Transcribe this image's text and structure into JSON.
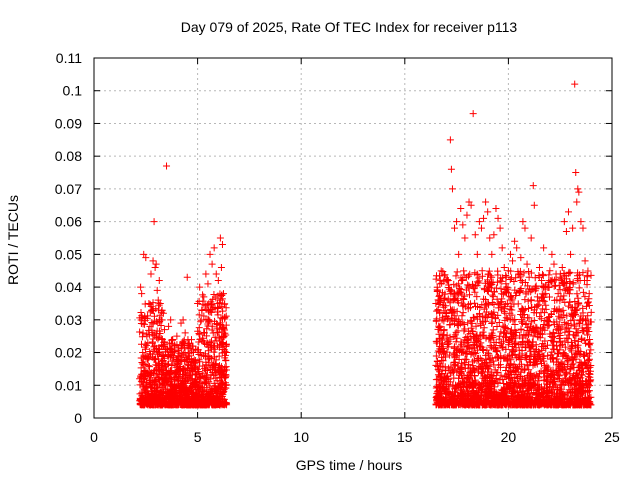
{
  "chart_data": {
    "type": "scatter",
    "title": "Day 079 of 2025, Rate Of TEC Index for receiver p113",
    "xlabel": "GPS time / hours",
    "ylabel": "ROTI / TECUs",
    "xlim": [
      0,
      25
    ],
    "ylim": [
      0,
      0.11
    ],
    "x_ticks": [
      0,
      5,
      10,
      15,
      20,
      25
    ],
    "x_tick_labels": [
      "0",
      "5",
      "10",
      "15",
      "20",
      "25"
    ],
    "y_ticks": [
      0,
      0.01,
      0.02,
      0.03,
      0.04,
      0.05,
      0.06,
      0.07,
      0.08,
      0.09,
      0.1,
      0.11
    ],
    "y_tick_labels": [
      "0",
      "0.01",
      "0.02",
      "0.03",
      "0.04",
      "0.05",
      "0.06",
      "0.07",
      "0.08",
      "0.09",
      "0.1",
      "0.11"
    ],
    "grid": true,
    "marker": "plus",
    "color": "#ff0000",
    "series": [
      {
        "name": "ROTI",
        "points": [
          [
            2.2,
            0.012
          ],
          [
            2.25,
            0.04
          ],
          [
            2.3,
            0.038
          ],
          [
            2.35,
            0.02
          ],
          [
            2.4,
            0.05
          ],
          [
            2.45,
            0.031
          ],
          [
            2.5,
            0.049
          ],
          [
            2.55,
            0.025
          ],
          [
            2.6,
            0.018
          ],
          [
            2.65,
            0.035
          ],
          [
            2.7,
            0.028
          ],
          [
            2.75,
            0.044
          ],
          [
            2.8,
            0.033
          ],
          [
            2.85,
            0.048
          ],
          [
            2.9,
            0.06
          ],
          [
            2.95,
            0.046
          ],
          [
            3.0,
            0.047
          ],
          [
            3.05,
            0.039
          ],
          [
            3.1,
            0.036
          ],
          [
            3.15,
            0.042
          ],
          [
            3.2,
            0.035
          ],
          [
            3.25,
            0.03
          ],
          [
            3.3,
            0.024
          ],
          [
            3.35,
            0.032
          ],
          [
            3.4,
            0.027
          ],
          [
            3.5,
            0.077
          ],
          [
            3.6,
            0.028
          ],
          [
            3.7,
            0.03
          ],
          [
            3.8,
            0.024
          ],
          [
            3.9,
            0.022
          ],
          [
            4.0,
            0.025
          ],
          [
            4.1,
            0.019
          ],
          [
            4.2,
            0.029
          ],
          [
            4.3,
            0.03
          ],
          [
            4.4,
            0.026
          ],
          [
            4.5,
            0.043
          ],
          [
            4.6,
            0.022
          ],
          [
            4.7,
            0.018
          ],
          [
            4.8,
            0.02
          ],
          [
            4.9,
            0.017
          ],
          [
            5.0,
            0.035
          ],
          [
            5.1,
            0.04
          ],
          [
            5.2,
            0.033
          ],
          [
            5.3,
            0.037
          ],
          [
            5.4,
            0.044
          ],
          [
            5.5,
            0.041
          ],
          [
            5.6,
            0.05
          ],
          [
            5.7,
            0.047
          ],
          [
            5.8,
            0.052
          ],
          [
            5.9,
            0.044
          ],
          [
            6.0,
            0.042
          ],
          [
            6.1,
            0.055
          ],
          [
            6.15,
            0.046
          ],
          [
            6.2,
            0.053
          ],
          [
            6.25,
            0.038
          ],
          [
            6.3,
            0.02
          ],
          [
            16.5,
            0.035
          ],
          [
            16.6,
            0.033
          ],
          [
            16.7,
            0.028
          ],
          [
            16.8,
            0.03
          ],
          [
            16.9,
            0.036
          ],
          [
            17.0,
            0.031
          ],
          [
            17.1,
            0.042
          ],
          [
            17.2,
            0.085
          ],
          [
            17.25,
            0.076
          ],
          [
            17.3,
            0.07
          ],
          [
            17.4,
            0.058
          ],
          [
            17.5,
            0.06
          ],
          [
            17.6,
            0.05
          ],
          [
            17.7,
            0.064
          ],
          [
            17.8,
            0.059
          ],
          [
            17.9,
            0.055
          ],
          [
            18.0,
            0.062
          ],
          [
            18.1,
            0.066
          ],
          [
            18.2,
            0.065
          ],
          [
            18.3,
            0.093
          ],
          [
            18.4,
            0.056
          ],
          [
            18.5,
            0.05
          ],
          [
            18.6,
            0.06
          ],
          [
            18.7,
            0.058
          ],
          [
            18.8,
            0.061
          ],
          [
            18.9,
            0.066
          ],
          [
            19.0,
            0.063
          ],
          [
            19.1,
            0.055
          ],
          [
            19.2,
            0.05
          ],
          [
            19.3,
            0.056
          ],
          [
            19.4,
            0.064
          ],
          [
            19.5,
            0.061
          ],
          [
            19.6,
            0.058
          ],
          [
            19.7,
            0.052
          ],
          [
            19.8,
            0.046
          ],
          [
            19.9,
            0.04
          ],
          [
            20.0,
            0.045
          ],
          [
            20.1,
            0.05
          ],
          [
            20.2,
            0.048
          ],
          [
            20.3,
            0.054
          ],
          [
            20.4,
            0.052
          ],
          [
            20.5,
            0.044
          ],
          [
            20.6,
            0.049
          ],
          [
            20.7,
            0.06
          ],
          [
            20.8,
            0.058
          ],
          [
            20.9,
            0.047
          ],
          [
            21.0,
            0.043
          ],
          [
            21.1,
            0.055
          ],
          [
            21.2,
            0.071
          ],
          [
            21.25,
            0.065
          ],
          [
            21.3,
            0.04
          ],
          [
            21.4,
            0.037
          ],
          [
            21.5,
            0.046
          ],
          [
            21.6,
            0.042
          ],
          [
            21.7,
            0.052
          ],
          [
            21.8,
            0.038
          ],
          [
            21.9,
            0.04
          ],
          [
            22.0,
            0.045
          ],
          [
            22.1,
            0.05
          ],
          [
            22.2,
            0.047
          ],
          [
            22.3,
            0.044
          ],
          [
            22.4,
            0.038
          ],
          [
            22.5,
            0.043
          ],
          [
            22.6,
            0.046
          ],
          [
            22.7,
            0.06
          ],
          [
            22.8,
            0.057
          ],
          [
            22.9,
            0.063
          ],
          [
            23.0,
            0.05
          ],
          [
            23.1,
            0.058
          ],
          [
            23.2,
            0.102
          ],
          [
            23.25,
            0.075
          ],
          [
            23.3,
            0.066
          ],
          [
            23.35,
            0.07
          ],
          [
            23.4,
            0.069
          ],
          [
            23.5,
            0.06
          ],
          [
            23.6,
            0.058
          ],
          [
            23.7,
            0.048
          ],
          [
            23.8,
            0.042
          ],
          [
            23.9,
            0.038
          ]
        ]
      }
    ]
  }
}
